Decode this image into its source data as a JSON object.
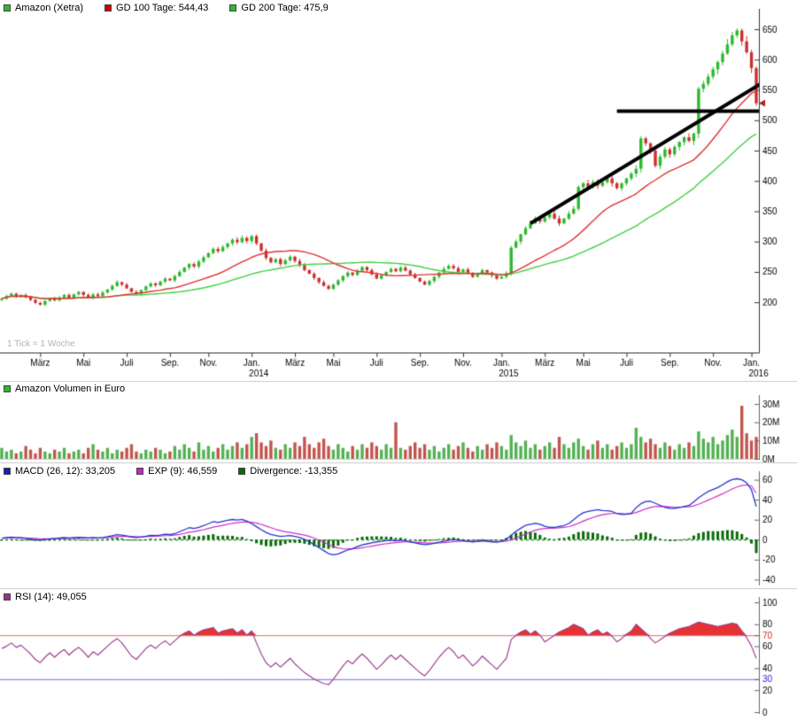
{
  "header": {
    "title": "Amazon (Xetra)"
  },
  "footnote": "1 Tick = 1 Woche",
  "legends": {
    "price": [
      {
        "color": "#2eb82e",
        "label": "Amazon (Xetra)"
      },
      {
        "color": "#cc0000",
        "label": "GD 100 Tage: 544,43"
      },
      {
        "color": "#2eb82e",
        "label": "GD 200 Tage: 475,9"
      }
    ],
    "volume": [
      {
        "color": "#2eb82e",
        "label": "Amazon Volumen in Euro"
      }
    ],
    "macd": [
      {
        "color": "#1c1cb8",
        "label": "MACD (26, 12): 33,205"
      },
      {
        "color": "#cc22cc",
        "label": "EXP (9): 46,559"
      },
      {
        "color": "#0a6b0a",
        "label": "Divergence: -13,355"
      }
    ],
    "rsi": [
      {
        "color": "#993388",
        "label": "RSI (14): 49,055"
      }
    ]
  },
  "chart_data": [
    {
      "type": "candlestick",
      "name": "price",
      "title": "Amazon (Xetra) weekly candles with GD 100 / GD 200",
      "ylim": [
        120,
        672
      ],
      "yticks": [
        650,
        600,
        550,
        500,
        450,
        400,
        350,
        300,
        250,
        200
      ],
      "xticks": [
        {
          "label": "März",
          "week": 8
        },
        {
          "label": "Mai",
          "week": 17
        },
        {
          "label": "Juli",
          "week": 26
        },
        {
          "label": "Sep.",
          "week": 35
        },
        {
          "label": "Nov.",
          "week": 43
        },
        {
          "label": "Jan.",
          "week": 52,
          "year": "2014"
        },
        {
          "label": "März",
          "week": 61
        },
        {
          "label": "Mai",
          "week": 69
        },
        {
          "label": "Juli",
          "week": 78
        },
        {
          "label": "Sep.",
          "week": 87
        },
        {
          "label": "Nov.",
          "week": 96
        },
        {
          "label": "Jan.",
          "week": 104,
          "year": "2015"
        },
        {
          "label": "März",
          "week": 113
        },
        {
          "label": "Mai",
          "week": 121
        },
        {
          "label": "Juli",
          "week": 130
        },
        {
          "label": "Sep.",
          "week": 139
        },
        {
          "label": "Nov.",
          "week": 148
        },
        {
          "label": "Jan.",
          "week": 156,
          "year": "2016"
        }
      ],
      "closes": [
        206,
        210,
        214,
        209,
        212,
        208,
        204,
        199,
        196,
        202,
        207,
        203,
        208,
        212,
        207,
        213,
        217,
        212,
        207,
        213,
        210,
        216,
        221,
        227,
        233,
        229,
        223,
        217,
        214,
        220,
        226,
        231,
        228,
        234,
        239,
        236,
        243,
        250,
        257,
        263,
        259,
        267,
        274,
        281,
        288,
        284,
        291,
        297,
        303,
        299,
        306,
        301,
        309,
        297,
        285,
        273,
        266,
        271,
        263,
        269,
        275,
        268,
        261,
        253,
        247,
        240,
        233,
        227,
        222,
        229,
        236,
        243,
        249,
        245,
        252,
        258,
        253,
        246,
        239,
        244,
        250,
        255,
        251,
        257,
        252,
        246,
        240,
        234,
        229,
        235,
        242,
        249,
        255,
        260,
        256,
        250,
        254,
        248,
        242,
        247,
        253,
        249,
        244,
        239,
        242,
        248,
        290,
        300,
        312,
        322,
        330,
        338,
        333,
        340,
        346,
        338,
        330,
        338,
        346,
        354,
        390,
        396,
        390,
        398,
        392,
        398,
        404,
        396,
        388,
        396,
        404,
        412,
        420,
        470,
        462,
        450,
        425,
        440,
        452,
        444,
        456,
        464,
        472,
        466,
        478,
        552,
        560,
        572,
        584,
        596,
        610,
        625,
        640,
        648,
        630,
        612,
        586,
        528
      ],
      "gd100_weeks": 20,
      "gd100_value_label": "544,43",
      "gd200_weeks": 40,
      "gd200_value_label": "475,9",
      "last_price": 528,
      "trendlines": [
        {
          "from_week": 110,
          "from_price": 330,
          "to_week": 160,
          "to_price": 570
        },
        {
          "from_week": 128,
          "from_price": 515,
          "to_week": 162,
          "to_price": 515
        }
      ],
      "colors": {
        "up": "#2eb82e",
        "down": "#cc2f2f",
        "gd100": "#e03131",
        "gd200": "#3fd13f",
        "trend": "#000000",
        "axis": "#333333",
        "marker": "#b22222"
      }
    },
    {
      "type": "bar",
      "name": "volume",
      "title": "Amazon Volumen in Euro",
      "ylim": [
        0,
        32
      ],
      "yticks": [
        30,
        20,
        10,
        0
      ],
      "ytick_labels": [
        "30M",
        "20M",
        "10M",
        "0M"
      ],
      "values_millions": [
        6,
        4,
        5,
        3,
        4,
        7,
        5,
        3,
        6,
        4,
        3,
        5,
        4,
        6,
        3,
        4,
        5,
        3,
        6,
        8,
        5,
        4,
        6,
        3,
        5,
        4,
        6,
        8,
        4,
        3,
        5,
        4,
        6,
        5,
        3,
        4,
        7,
        5,
        8,
        6,
        4,
        9,
        5,
        7,
        4,
        6,
        8,
        5,
        7,
        9,
        6,
        8,
        12,
        14,
        9,
        7,
        10,
        6,
        5,
        8,
        6,
        9,
        7,
        12,
        8,
        6,
        9,
        11,
        7,
        5,
        8,
        6,
        4,
        7,
        5,
        8,
        6,
        9,
        7,
        5,
        8,
        6,
        20,
        6,
        5,
        7,
        9,
        6,
        8,
        5,
        7,
        4,
        6,
        8,
        5,
        7,
        9,
        6,
        4,
        7,
        5,
        8,
        6,
        9,
        7,
        5,
        13,
        9,
        7,
        10,
        6,
        8,
        5,
        7,
        9,
        6,
        12,
        8,
        6,
        9,
        11,
        7,
        5,
        8,
        10,
        6,
        8,
        5,
        7,
        9,
        6,
        8,
        17,
        12,
        9,
        11,
        8,
        6,
        9,
        7,
        5,
        8,
        6,
        9,
        7,
        15,
        11,
        9,
        12,
        8,
        10,
        13,
        16,
        12,
        29,
        14,
        10,
        12
      ],
      "colors": {
        "up": "#53b153",
        "down": "#c0564e"
      }
    },
    {
      "type": "line",
      "name": "macd",
      "title": "MACD (26, 12) with EXP (9) signal and Divergence histogram",
      "ylim": [
        -45,
        65
      ],
      "yticks": [
        60,
        40,
        20,
        0,
        -20,
        -40
      ],
      "series": [
        {
          "name": "MACD (26, 12)",
          "color": "#2633cc",
          "values": [
            1.5,
            2,
            2.5,
            2.2,
            1.8,
            1.2,
            0.6,
            0,
            -0.4,
            0.2,
            0.8,
            1.2,
            1.6,
            2,
            1.7,
            2.1,
            2.4,
            2,
            1.6,
            2,
            1.7,
            2.2,
            3,
            4,
            5,
            4.6,
            3.6,
            2.6,
            2.1,
            2.6,
            3.4,
            4.4,
            4.1,
            4.6,
            5.4,
            5.1,
            6,
            8,
            10,
            12,
            11.2,
            12.4,
            14,
            16,
            18,
            17.2,
            18.4,
            19.4,
            20.2,
            19.6,
            20.4,
            18.6,
            16,
            13,
            10,
            7.2,
            5.2,
            4.2,
            3.2,
            3.6,
            4.2,
            3.2,
            2.2,
            0.4,
            -2,
            -5,
            -8,
            -11,
            -14,
            -15.2,
            -14.2,
            -12.2,
            -10.2,
            -9,
            -7,
            -5.2,
            -4.2,
            -3.2,
            -2.2,
            -1.6,
            -1,
            -0.6,
            -1.2,
            -0.6,
            -1.2,
            -2.2,
            -3.2,
            -4.2,
            -5,
            -4.6,
            -3.6,
            -2.6,
            -1.6,
            -0.6,
            0.2,
            -0.4,
            -1,
            -1.6,
            -2.2,
            -1.6,
            -1,
            -1.6,
            -2.2,
            -2.6,
            -1.6,
            0.4,
            4.4,
            8.4,
            11.4,
            14.4,
            15.4,
            16.4,
            15.4,
            13.4,
            12.4,
            12.2,
            13.2,
            14.2,
            16.2,
            20,
            24,
            27,
            28.2,
            29.2,
            30,
            29.2,
            29,
            28.2,
            26.2,
            25.2,
            25.4,
            26.4,
            32,
            36,
            38.2,
            38.4,
            36.4,
            34.4,
            32.4,
            31.4,
            31.2,
            32.2,
            33.2,
            34.2,
            38,
            42,
            45.2,
            48.2,
            50.2,
            52.2,
            55,
            58,
            60.2,
            61,
            60,
            57,
            50,
            33.2
          ]
        },
        {
          "name": "EXP (9)",
          "color": "#cc2fcc",
          "values": [
            1.5,
            1.6,
            1.8,
            1.9,
            1.9,
            1.7,
            1.5,
            1.2,
            0.9,
            0.8,
            0.8,
            0.9,
            1,
            1.2,
            1.3,
            1.5,
            1.7,
            1.7,
            1.7,
            1.8,
            1.8,
            1.8,
            2.1,
            2.5,
            3,
            3.3,
            3.4,
            3.2,
            3,
            2.9,
            3,
            3.3,
            3.4,
            3.7,
            4,
            4.2,
            4.6,
            5.3,
            6.2,
            7.4,
            8.1,
            9,
            10,
            11.2,
            12.5,
            13.5,
            14.4,
            15.4,
            16.4,
            17,
            17.7,
            17.9,
            17.5,
            16.6,
            15.3,
            13.7,
            12,
            10.4,
            9,
            7.9,
            7.2,
            6.4,
            5.5,
            4.5,
            3.2,
            1.6,
            -0.4,
            -2.5,
            -4.8,
            -6.9,
            -8.3,
            -9.1,
            -9.3,
            -9.2,
            -8.8,
            -8.1,
            -7.3,
            -6.5,
            -5.6,
            -4.8,
            -4,
            -3.4,
            -2.9,
            -2.5,
            -2.2,
            -2.2,
            -2.4,
            -2.8,
            -3.2,
            -3.5,
            -3.5,
            -3.3,
            -3,
            -2.5,
            -2,
            -1.7,
            -1.5,
            -1.5,
            -1.7,
            -1.7,
            -1.5,
            -1.5,
            -1.7,
            -1.9,
            -1.8,
            -1.4,
            -0.2,
            1.5,
            3.5,
            5.7,
            7.6,
            9.4,
            10.6,
            11.2,
            11.4,
            11.6,
            11.9,
            12.4,
            13.1,
            14.5,
            16.4,
            18.5,
            20.5,
            22.2,
            23.8,
            24.9,
            25.7,
            26.2,
            26.2,
            26,
            25.9,
            26,
            27.2,
            29,
            30.8,
            32.3,
            33.1,
            33.4,
            33.2,
            32.8,
            32.5,
            32.4,
            32.6,
            32.9,
            33.9,
            35.5,
            37.5,
            39.6,
            41.7,
            43.8,
            46,
            48.4,
            50.8,
            52.8,
            54.3,
            54.8,
            53.9,
            46.6
          ]
        }
      ],
      "histogram": {
        "name": "Divergence",
        "color": "#0a6b0a",
        "derived": "MACD minus EXP"
      }
    },
    {
      "type": "line",
      "name": "rsi",
      "title": "RSI (14)",
      "ylim": [
        0,
        100
      ],
      "yticks": [
        100,
        80,
        70,
        60,
        40,
        30,
        20,
        0
      ],
      "overbought": 70,
      "oversold": 30,
      "values": [
        58,
        60,
        63,
        59,
        61,
        57,
        53,
        48,
        45,
        50,
        54,
        50,
        54,
        57,
        52,
        56,
        59,
        55,
        50,
        55,
        52,
        56,
        60,
        64,
        67,
        63,
        57,
        51,
        48,
        53,
        58,
        61,
        58,
        62,
        65,
        61,
        65,
        69,
        72,
        74,
        70,
        73,
        75,
        76,
        77,
        72,
        74,
        75,
        76,
        72,
        75,
        70,
        74,
        63,
        53,
        45,
        41,
        45,
        41,
        45,
        49,
        44,
        40,
        36,
        33,
        30,
        28,
        26,
        25,
        30,
        36,
        42,
        47,
        44,
        49,
        53,
        49,
        44,
        39,
        43,
        48,
        52,
        48,
        52,
        48,
        44,
        40,
        36,
        33,
        38,
        44,
        50,
        55,
        59,
        55,
        49,
        52,
        47,
        42,
        46,
        51,
        47,
        43,
        39,
        44,
        49,
        66,
        70,
        73,
        75,
        71,
        74,
        70,
        64,
        67,
        70,
        73,
        75,
        77,
        80,
        78,
        76,
        70,
        73,
        75,
        71,
        73,
        69,
        64,
        67,
        71,
        74,
        80,
        76,
        72,
        67,
        63,
        66,
        69,
        72,
        74,
        76,
        77,
        78,
        80,
        82,
        81,
        80,
        79,
        78,
        79,
        80,
        81,
        80,
        74,
        68,
        60,
        49
      ],
      "colors": {
        "line": "#9c4191",
        "fill": "#e63232",
        "ob_line": "#e06a6a",
        "os_line": "#6a6ae0",
        "ob_text": "#cc2222",
        "os_text": "#2222cc"
      }
    }
  ]
}
